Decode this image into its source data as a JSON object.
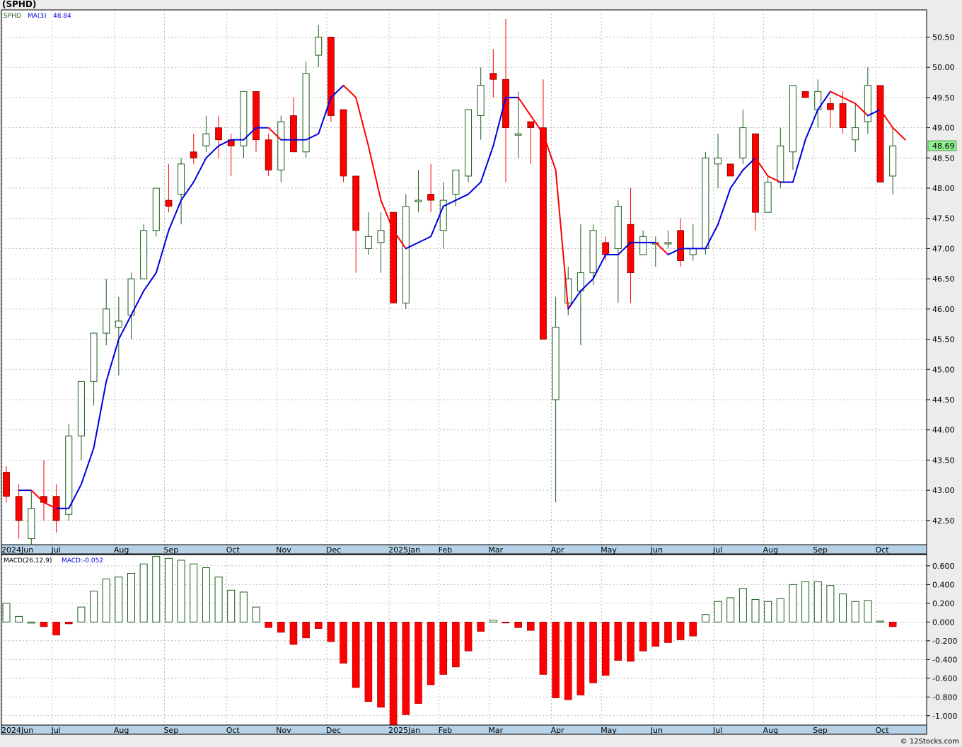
{
  "title": "(SPHD)",
  "credit": "© 12Stocks.com",
  "price_legend": {
    "symbol": "SPHD",
    "ma_label": "MA(3)",
    "ma_value": "48.84"
  },
  "macd_legend": {
    "label": "MACD(26,12,9)",
    "value_label": "MACD:-0.052"
  },
  "last_price_label": "48.69",
  "colors": {
    "up": "#1a5e1a",
    "down": "#ff0000",
    "ma_blue": "#0000dd",
    "ma_red": "#ff0000",
    "axis_bar": "#b7d2e6",
    "grid": "#aaaaaa",
    "price_tag": "#90ee90"
  },
  "months": [
    {
      "label": "2024Jun",
      "week": 0
    },
    {
      "label": "Jul",
      "week": 4
    },
    {
      "label": "Aug",
      "week": 9
    },
    {
      "label": "Sep",
      "week": 13
    },
    {
      "label": "Oct",
      "week": 18
    },
    {
      "label": "Nov",
      "week": 22
    },
    {
      "label": "Dec",
      "week": 26
    },
    {
      "label": "2025Jan",
      "week": 31
    },
    {
      "label": "Feb",
      "week": 35
    },
    {
      "label": "Mar",
      "week": 39
    },
    {
      "label": "Apr",
      "week": 44
    },
    {
      "label": "May",
      "week": 48
    },
    {
      "label": "Jun",
      "week": 52
    },
    {
      "label": "Jul",
      "week": 57
    },
    {
      "label": "Aug",
      "week": 61
    },
    {
      "label": "Sep",
      "week": 65
    },
    {
      "label": "Oct",
      "week": 70
    }
  ],
  "chart_data": [
    {
      "type": "candlestick",
      "title": "(SPHD)",
      "ylim": [
        42.1,
        50.95
      ],
      "yticks": [
        "42.50",
        "43.00",
        "43.50",
        "44.00",
        "44.50",
        "45.00",
        "45.50",
        "46.00",
        "46.50",
        "47.00",
        "47.50",
        "48.00",
        "48.50",
        "49.00",
        "49.50",
        "50.00",
        "50.50"
      ],
      "grid": true,
      "candles": [
        {
          "o": 43.3,
          "h": 43.4,
          "l": 42.8,
          "c": 42.9
        },
        {
          "o": 42.9,
          "h": 43.1,
          "l": 42.2,
          "c": 42.5
        },
        {
          "o": 42.2,
          "h": 43.0,
          "l": 42.1,
          "c": 42.7
        },
        {
          "o": 42.9,
          "h": 43.5,
          "l": 42.5,
          "c": 42.8
        },
        {
          "o": 42.9,
          "h": 43.1,
          "l": 42.3,
          "c": 42.5
        },
        {
          "o": 42.6,
          "h": 44.1,
          "l": 42.5,
          "c": 43.9
        },
        {
          "o": 43.9,
          "h": 44.8,
          "l": 43.5,
          "c": 44.8
        },
        {
          "o": 44.8,
          "h": 45.6,
          "l": 44.4,
          "c": 45.6
        },
        {
          "o": 45.6,
          "h": 46.5,
          "l": 45.4,
          "c": 46.0
        },
        {
          "o": 45.7,
          "h": 46.2,
          "l": 44.9,
          "c": 45.8
        },
        {
          "o": 45.9,
          "h": 46.6,
          "l": 45.5,
          "c": 46.5
        },
        {
          "o": 46.5,
          "h": 47.4,
          "l": 46.5,
          "c": 47.3
        },
        {
          "o": 47.3,
          "h": 48.0,
          "l": 47.2,
          "c": 48.0
        },
        {
          "o": 47.8,
          "h": 48.4,
          "l": 47.6,
          "c": 47.7
        },
        {
          "o": 47.9,
          "h": 48.5,
          "l": 47.4,
          "c": 48.4
        },
        {
          "o": 48.6,
          "h": 48.9,
          "l": 48.4,
          "c": 48.5
        },
        {
          "o": 48.7,
          "h": 49.2,
          "l": 48.6,
          "c": 48.9
        },
        {
          "o": 49.0,
          "h": 49.2,
          "l": 48.5,
          "c": 48.8
        },
        {
          "o": 48.8,
          "h": 48.9,
          "l": 48.2,
          "c": 48.7
        },
        {
          "o": 48.7,
          "h": 49.6,
          "l": 48.5,
          "c": 49.6
        },
        {
          "o": 49.6,
          "h": 49.6,
          "l": 48.6,
          "c": 48.8
        },
        {
          "o": 48.8,
          "h": 48.9,
          "l": 48.2,
          "c": 48.3
        },
        {
          "o": 48.3,
          "h": 49.2,
          "l": 48.1,
          "c": 49.1
        },
        {
          "o": 49.2,
          "h": 49.5,
          "l": 48.6,
          "c": 48.6
        },
        {
          "o": 48.6,
          "h": 50.1,
          "l": 48.5,
          "c": 49.9
        },
        {
          "o": 50.2,
          "h": 50.7,
          "l": 50.0,
          "c": 50.5
        },
        {
          "o": 50.5,
          "h": 50.5,
          "l": 49.1,
          "c": 49.2
        },
        {
          "o": 49.3,
          "h": 49.3,
          "l": 48.1,
          "c": 48.2
        },
        {
          "o": 48.2,
          "h": 48.2,
          "l": 46.6,
          "c": 47.3
        },
        {
          "o": 47.0,
          "h": 47.6,
          "l": 46.9,
          "c": 47.2
        },
        {
          "o": 47.1,
          "h": 47.6,
          "l": 46.6,
          "c": 47.3
        },
        {
          "o": 47.6,
          "h": 47.6,
          "l": 46.1,
          "c": 46.1
        },
        {
          "o": 46.1,
          "h": 47.9,
          "l": 46.0,
          "c": 47.7
        },
        {
          "o": 47.8,
          "h": 48.3,
          "l": 47.6,
          "c": 47.8
        },
        {
          "o": 47.9,
          "h": 48.4,
          "l": 47.6,
          "c": 47.8
        },
        {
          "o": 47.3,
          "h": 48.1,
          "l": 47.0,
          "c": 47.8
        },
        {
          "o": 47.9,
          "h": 48.3,
          "l": 47.7,
          "c": 48.3
        },
        {
          "o": 48.2,
          "h": 49.3,
          "l": 48.1,
          "c": 49.3
        },
        {
          "o": 49.2,
          "h": 50.0,
          "l": 48.8,
          "c": 49.7
        },
        {
          "o": 49.9,
          "h": 50.3,
          "l": 49.5,
          "c": 49.8
        },
        {
          "o": 49.8,
          "h": 50.8,
          "l": 48.1,
          "c": 49.0
        },
        {
          "o": 48.9,
          "h": 49.6,
          "l": 48.5,
          "c": 48.9
        },
        {
          "o": 49.1,
          "h": 49.1,
          "l": 48.4,
          "c": 49.0
        },
        {
          "o": 49.0,
          "h": 49.8,
          "l": 45.5,
          "c": 45.5
        },
        {
          "o": 44.5,
          "h": 46.2,
          "l": 42.8,
          "c": 45.7
        },
        {
          "o": 46.1,
          "h": 46.7,
          "l": 45.9,
          "c": 46.5
        },
        {
          "o": 46.3,
          "h": 47.4,
          "l": 45.4,
          "c": 46.6
        },
        {
          "o": 46.6,
          "h": 47.4,
          "l": 46.4,
          "c": 47.3
        },
        {
          "o": 47.1,
          "h": 47.2,
          "l": 46.8,
          "c": 46.9
        },
        {
          "o": 47.0,
          "h": 47.8,
          "l": 46.1,
          "c": 47.7
        },
        {
          "o": 47.4,
          "h": 48.0,
          "l": 46.1,
          "c": 46.6
        },
        {
          "o": 46.9,
          "h": 47.3,
          "l": 46.9,
          "c": 47.2
        },
        {
          "o": 47.1,
          "h": 47.2,
          "l": 46.7,
          "c": 47.1
        },
        {
          "o": 47.1,
          "h": 47.3,
          "l": 47.0,
          "c": 47.1
        },
        {
          "o": 47.3,
          "h": 47.5,
          "l": 46.7,
          "c": 46.8
        },
        {
          "o": 46.9,
          "h": 47.4,
          "l": 46.8,
          "c": 47.0
        },
        {
          "o": 47.0,
          "h": 48.6,
          "l": 46.9,
          "c": 48.5
        },
        {
          "o": 48.4,
          "h": 48.9,
          "l": 48.0,
          "c": 48.5
        },
        {
          "o": 48.4,
          "h": 48.4,
          "l": 48.2,
          "c": 48.2
        },
        {
          "o": 48.5,
          "h": 49.3,
          "l": 48.4,
          "c": 49.0
        },
        {
          "o": 48.9,
          "h": 48.9,
          "l": 47.3,
          "c": 47.6
        },
        {
          "o": 47.6,
          "h": 48.2,
          "l": 47.6,
          "c": 48.1
        },
        {
          "o": 48.1,
          "h": 49.0,
          "l": 48.0,
          "c": 48.7
        },
        {
          "o": 48.6,
          "h": 49.7,
          "l": 48.3,
          "c": 49.7
        },
        {
          "o": 49.6,
          "h": 49.6,
          "l": 49.5,
          "c": 49.5
        },
        {
          "o": 49.3,
          "h": 49.8,
          "l": 49.0,
          "c": 49.6
        },
        {
          "o": 49.4,
          "h": 49.5,
          "l": 49.0,
          "c": 49.3
        },
        {
          "o": 49.4,
          "h": 49.6,
          "l": 48.9,
          "c": 49.0
        },
        {
          "o": 48.8,
          "h": 49.4,
          "l": 48.6,
          "c": 49.0
        },
        {
          "o": 49.1,
          "h": 50.0,
          "l": 48.9,
          "c": 49.7
        },
        {
          "o": 49.7,
          "h": 49.7,
          "l": 48.1,
          "c": 48.1
        },
        {
          "o": 48.2,
          "h": 49.0,
          "l": 47.9,
          "c": 48.7
        }
      ],
      "ma": [
        43.0,
        43.0,
        42.8,
        42.7,
        42.7,
        43.1,
        43.7,
        44.8,
        45.5,
        45.9,
        46.3,
        46.6,
        47.3,
        47.8,
        48.1,
        48.5,
        48.7,
        48.8,
        48.8,
        49.0,
        49.0,
        48.8,
        48.8,
        48.8,
        48.9,
        49.5,
        49.7,
        49.5,
        48.7,
        47.8,
        47.3,
        47.0,
        47.1,
        47.2,
        47.7,
        47.8,
        47.9,
        48.1,
        48.7,
        49.5,
        49.5,
        49.2,
        48.9,
        48.3,
        46.0,
        46.3,
        46.5,
        46.9,
        46.9,
        47.1,
        47.1,
        47.1,
        46.9,
        47.0,
        47.0,
        47.0,
        47.4,
        48.0,
        48.3,
        48.5,
        48.2,
        48.1,
        48.1,
        48.8,
        49.3,
        49.6,
        49.5,
        49.4,
        49.2,
        49.3,
        49.0,
        48.8
      ],
      "ma_color_by_segment": "blue when rising, red when falling"
    },
    {
      "type": "bar",
      "title": "MACD(26,12,9)",
      "ylim": [
        -1.1,
        0.72
      ],
      "yticks": [
        "0.600",
        "0.400",
        "0.200",
        "0.000",
        "-0.200",
        "-0.400",
        "-0.600",
        "-0.800",
        "-1.000"
      ],
      "values": [
        0.2,
        0.06,
        0.0,
        -0.05,
        -0.14,
        -0.02,
        0.16,
        0.33,
        0.46,
        0.48,
        0.52,
        0.62,
        0.7,
        0.68,
        0.66,
        0.62,
        0.58,
        0.48,
        0.34,
        0.32,
        0.16,
        -0.06,
        -0.11,
        -0.24,
        -0.17,
        -0.07,
        -0.21,
        -0.44,
        -0.7,
        -0.85,
        -0.91,
        -1.1,
        -0.99,
        -0.87,
        -0.67,
        -0.56,
        -0.48,
        -0.31,
        -0.1,
        0.02,
        -0.01,
        -0.06,
        -0.09,
        -0.56,
        -0.81,
        -0.83,
        -0.78,
        -0.65,
        -0.57,
        -0.41,
        -0.42,
        -0.31,
        -0.26,
        -0.22,
        -0.19,
        -0.15,
        0.08,
        0.22,
        0.26,
        0.36,
        0.24,
        0.22,
        0.25,
        0.4,
        0.43,
        0.43,
        0.39,
        0.3,
        0.22,
        0.23,
        0.01,
        -0.05
      ]
    }
  ]
}
